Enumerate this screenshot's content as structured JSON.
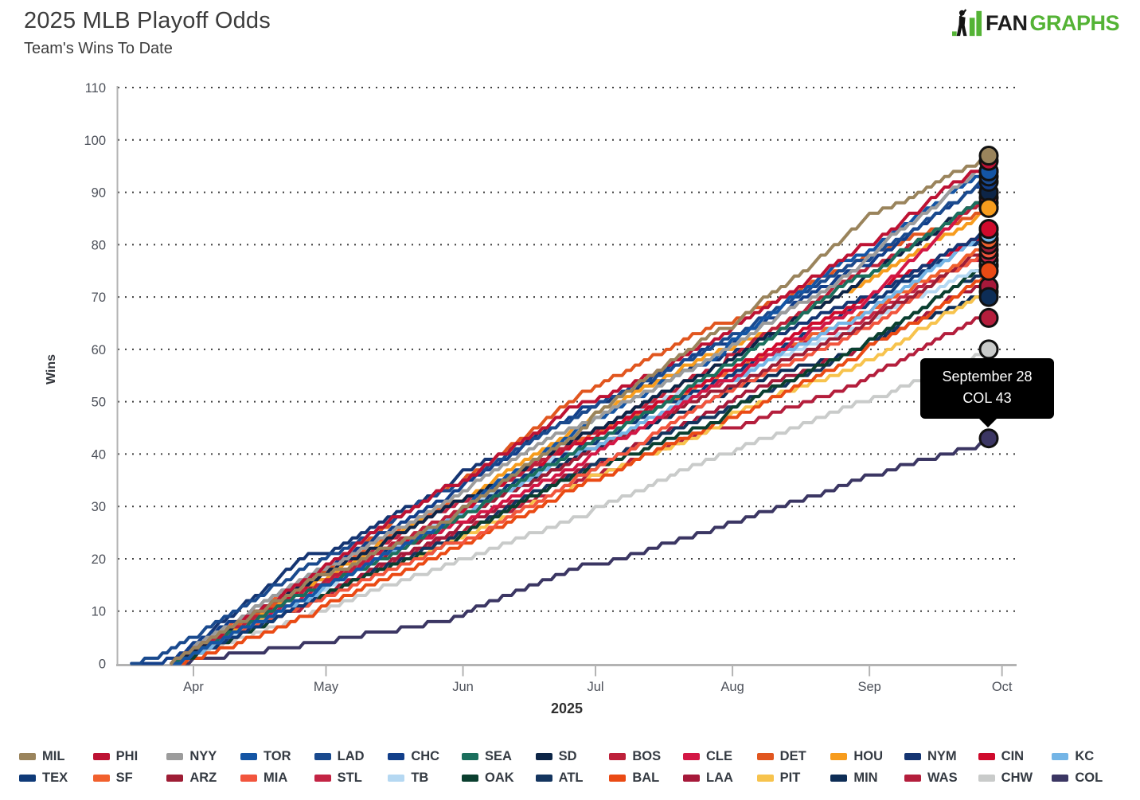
{
  "header": {
    "title": "2025 MLB Playoff Odds",
    "subtitle": "Team's Wins To Date",
    "logo_fan": "FAN",
    "logo_graphs": "GRAPHS"
  },
  "tooltip": {
    "line1": "September 28",
    "line2": "COL 43"
  },
  "colors": {
    "logo_green": "#54b335",
    "axis_line": "#b3b3b3",
    "tick_text": "#4d515a",
    "grid_dots": "#3f3f3f",
    "tooltip_bg": "#000000",
    "dot_stroke": "#111111"
  },
  "chart_data": {
    "type": "line",
    "title": "2025 MLB Playoff Odds",
    "subtitle": "Team's Wins To Date",
    "xlabel": "2025",
    "ylabel": "Wins",
    "x_tick_labels": [
      "Apr",
      "May",
      "Jun",
      "Jul",
      "Aug",
      "Sep",
      "Oct"
    ],
    "y_ticks": [
      0,
      10,
      20,
      30,
      40,
      50,
      60,
      70,
      80,
      90,
      100,
      110
    ],
    "ylim": [
      0,
      110
    ],
    "grid": "dotted-horizontal",
    "legend_position": "bottom",
    "end_marker_date": "September 28",
    "dates": [
      "Mar 18",
      "Mar 27",
      "Apr 30",
      "May 31",
      "Jun 30",
      "Jul 31",
      "Aug 31",
      "Sep 28"
    ],
    "series": [
      {
        "name": "MIL",
        "color": "#9a845c",
        "final": 97,
        "values": [
          null,
          0,
          17,
          29,
          47,
          64,
          85,
          97
        ]
      },
      {
        "name": "PHI",
        "color": "#bd1233",
        "final": 96,
        "values": [
          null,
          0,
          18,
          34,
          50,
          63,
          80,
          96
        ]
      },
      {
        "name": "NYY",
        "color": "#9c9c9c",
        "final": 94,
        "values": [
          null,
          0,
          18,
          32,
          46,
          60,
          77,
          94
        ]
      },
      {
        "name": "TOR",
        "color": "#1455a4",
        "final": 94,
        "values": [
          null,
          0,
          15,
          29,
          46,
          61,
          78,
          94
        ]
      },
      {
        "name": "LAD",
        "color": "#1a4a8e",
        "final": 93,
        "values": [
          0,
          3,
          20,
          34,
          49,
          62,
          77,
          93
        ]
      },
      {
        "name": "CHC",
        "color": "#123f8a",
        "final": 92,
        "values": [
          0,
          1,
          18,
          33,
          49,
          61,
          76,
          92
        ]
      },
      {
        "name": "SEA",
        "color": "#1b6f5d",
        "final": 90,
        "values": [
          null,
          0,
          15,
          28,
          42,
          57,
          74,
          90
        ]
      },
      {
        "name": "SD",
        "color": "#0d2547",
        "final": 90,
        "values": [
          null,
          0,
          17,
          31,
          44,
          58,
          74,
          90
        ]
      },
      {
        "name": "BOS",
        "color": "#bd203a",
        "final": 89,
        "values": [
          null,
          0,
          15,
          29,
          44,
          59,
          75,
          89
        ]
      },
      {
        "name": "CLE",
        "color": "#d31745",
        "final": 88,
        "values": [
          null,
          0,
          15,
          27,
          40,
          54,
          69,
          88
        ]
      },
      {
        "name": "DET",
        "color": "#e1561f",
        "final": 87,
        "values": [
          null,
          0,
          17,
          34,
          52,
          65,
          78,
          87
        ]
      },
      {
        "name": "HOU",
        "color": "#f79c1d",
        "final": 87,
        "values": [
          null,
          0,
          16,
          31,
          47,
          60,
          73,
          87
        ]
      },
      {
        "name": "NYM",
        "color": "#153572",
        "final": 83,
        "values": [
          null,
          0,
          21,
          36,
          49,
          59,
          70,
          83
        ]
      },
      {
        "name": "CIN",
        "color": "#cf0a2c",
        "final": 83,
        "values": [
          null,
          0,
          16,
          29,
          43,
          56,
          70,
          83
        ]
      },
      {
        "name": "KC",
        "color": "#74b5e6",
        "final": 82,
        "values": [
          null,
          0,
          14,
          28,
          41,
          54,
          67,
          82
        ]
      },
      {
        "name": "TEX",
        "color": "#0f3a78",
        "final": 81,
        "values": [
          null,
          0,
          15,
          29,
          42,
          55,
          68,
          81
        ]
      },
      {
        "name": "SF",
        "color": "#f1602d",
        "final": 81,
        "values": [
          null,
          0,
          17,
          31,
          44,
          56,
          67,
          81
        ]
      },
      {
        "name": "ARZ",
        "color": "#9e1d35",
        "final": 80,
        "values": [
          null,
          0,
          15,
          28,
          41,
          53,
          65,
          80
        ]
      },
      {
        "name": "MIA",
        "color": "#f2553d",
        "final": 79,
        "values": [
          null,
          0,
          12,
          23,
          37,
          52,
          64,
          79
        ]
      },
      {
        "name": "STL",
        "color": "#c32444",
        "final": 78,
        "values": [
          null,
          0,
          17,
          31,
          44,
          55,
          66,
          78
        ]
      },
      {
        "name": "TB",
        "color": "#b5d8f2",
        "final": 77,
        "values": [
          null,
          0,
          14,
          29,
          44,
          55,
          65,
          77
        ]
      },
      {
        "name": "OAK",
        "color": "#0a3f2f",
        "final": 76,
        "values": [
          null,
          0,
          13,
          24,
          37,
          48,
          61,
          76
        ]
      },
      {
        "name": "ATL",
        "color": "#14355f",
        "final": 76,
        "values": [
          null,
          0,
          13,
          25,
          38,
          49,
          61,
          76
        ]
      },
      {
        "name": "BAL",
        "color": "#ea4a14",
        "final": 75,
        "values": [
          null,
          0,
          11,
          22,
          35,
          47,
          60,
          75
        ]
      },
      {
        "name": "LAA",
        "color": "#a6193a",
        "final": 72,
        "values": [
          null,
          0,
          13,
          26,
          38,
          50,
          60,
          72
        ]
      },
      {
        "name": "PIT",
        "color": "#f7c34d",
        "final": 71,
        "values": [
          null,
          0,
          13,
          24,
          36,
          47,
          58,
          71
        ]
      },
      {
        "name": "MIN",
        "color": "#0d2d56",
        "final": 70,
        "values": [
          null,
          0,
          15,
          28,
          41,
          52,
          61,
          70
        ]
      },
      {
        "name": "WAS",
        "color": "#b41e3c",
        "final": 66,
        "values": [
          null,
          0,
          13,
          25,
          36,
          45,
          54,
          66
        ]
      },
      {
        "name": "CHW",
        "color": "#c9cbca",
        "final": 60,
        "values": [
          null,
          0,
          10,
          20,
          29,
          40,
          50,
          60
        ]
      },
      {
        "name": "COL",
        "color": "#3b3663",
        "final": 43,
        "values": [
          null,
          0,
          4,
          9,
          19,
          27,
          36,
          43
        ]
      }
    ]
  }
}
